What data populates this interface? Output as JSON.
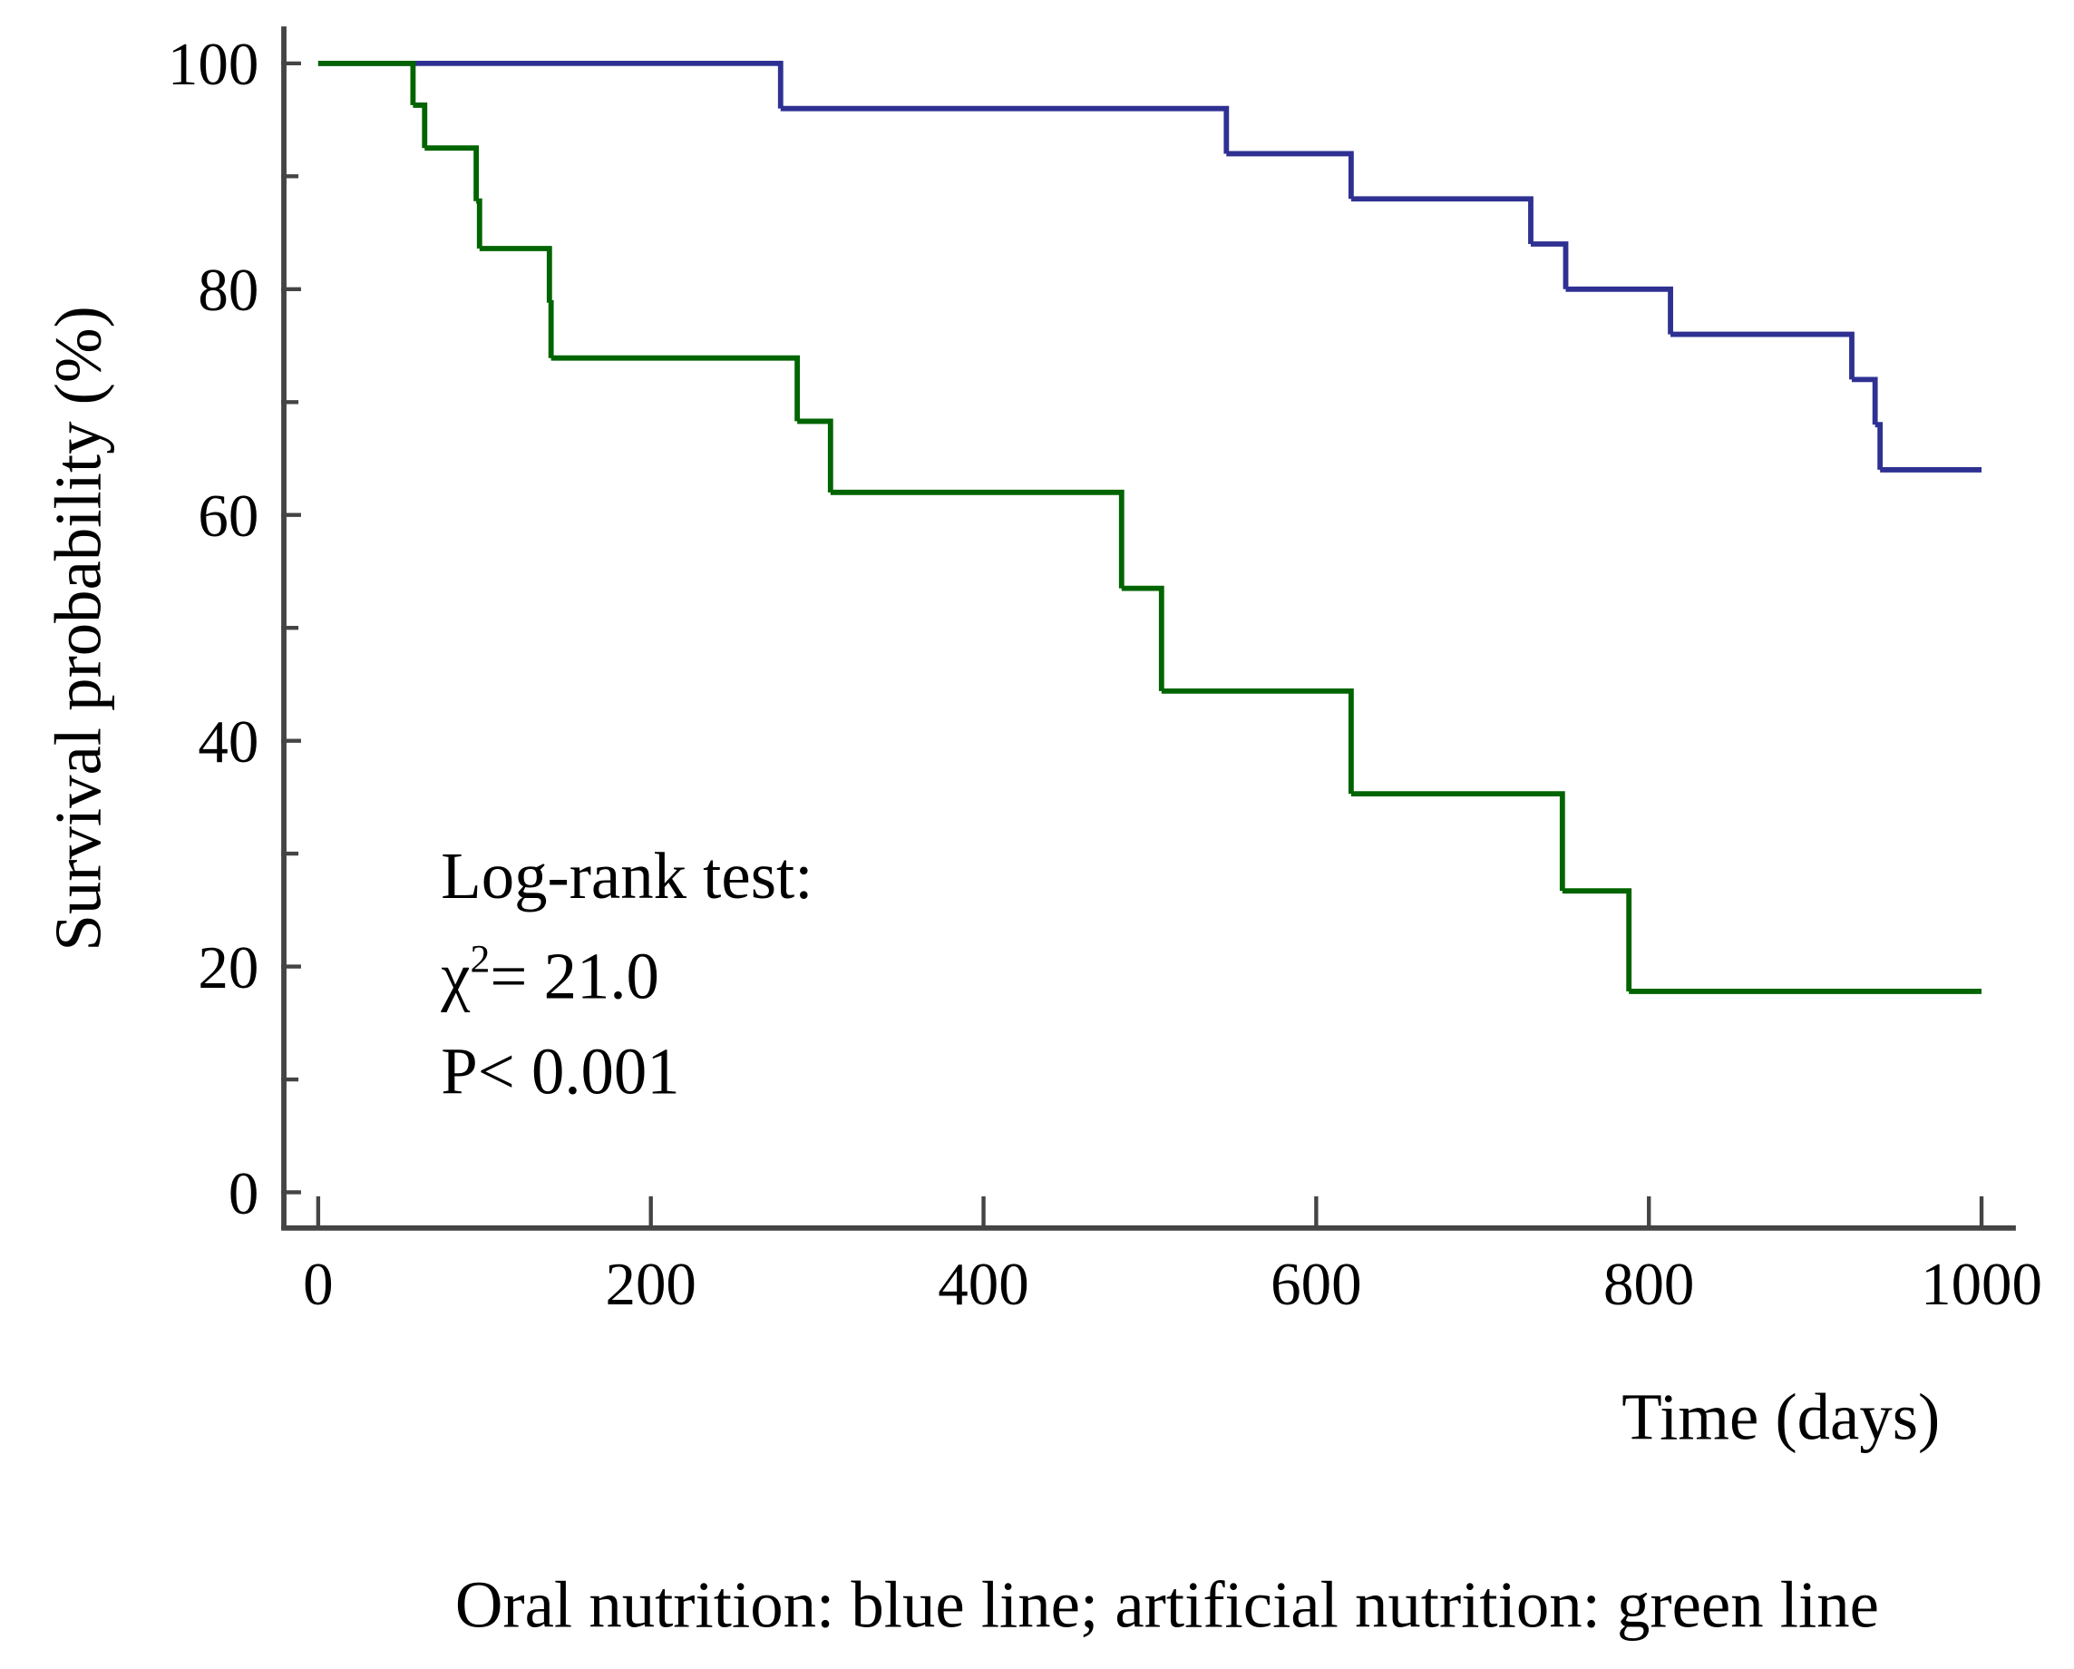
{
  "chart_data": {
    "type": "step",
    "xlabel": "Time (days)",
    "ylabel": "Survival probability (%)",
    "caption": "Oral nutrition: blue line; artificial nutrition: green line",
    "annotation": {
      "title": "Log-rank test:",
      "chi_symbol": "χ",
      "chi_exponent": "2",
      "chi_value": "= 21.0",
      "p": "P< 0.001"
    },
    "xlim": [
      0,
      1000
    ],
    "xticks": [
      0,
      200,
      400,
      600,
      800,
      1000
    ],
    "ylim": [
      0,
      100
    ],
    "yticks": [
      0,
      20,
      40,
      60,
      80,
      100
    ],
    "yminorticks": [
      10,
      30,
      50,
      70,
      90
    ],
    "series": [
      {
        "color": "#2e3192",
        "x": [
          0,
          278,
          546,
          621,
          729,
          750,
          813,
          922,
          936,
          939,
          1000
        ],
        "values": [
          100,
          96,
          92,
          88,
          84,
          80,
          76,
          72,
          68,
          64,
          64
        ]
      },
      {
        "color": "#006400",
        "x": [
          0,
          57,
          64,
          95,
          97,
          139,
          140,
          288,
          308,
          483,
          507,
          621,
          748,
          788,
          1000
        ],
        "values": [
          100,
          96.3,
          92.5,
          87.8,
          83.6,
          78.8,
          73.9,
          68.3,
          62.0,
          53.5,
          44.4,
          35.3,
          26.7,
          17.8,
          17.8
        ]
      }
    ]
  }
}
